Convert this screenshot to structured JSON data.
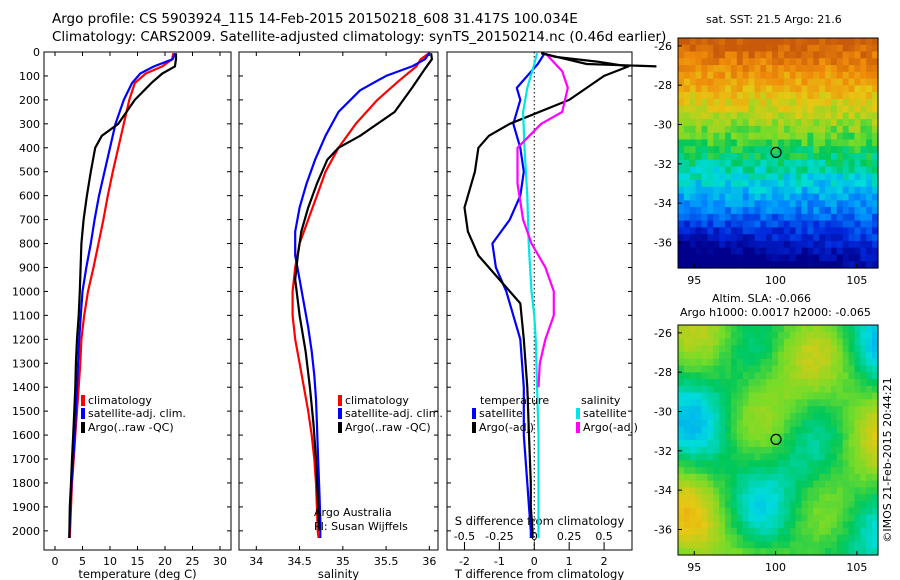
{
  "header": {
    "line1": "Argo profile: CS 5903924_115 14-Feb-2015 20150218_608 31.417S 100.034E",
    "line2": "Climatology: CARS2009. Satellite-adjusted climatology: synTS_20150214.nc (0.46d earlier)"
  },
  "credit": "©IMOS 21-Feb-2015 20:44:21",
  "colors": {
    "clim": "#ff0000",
    "sat": "#0000ff",
    "argo": "#000000",
    "sal_sat": "#00e5e5",
    "sal_argo": "#ff00ff"
  },
  "chart_data": [
    {
      "type": "line",
      "xlabel": "temperature (deg C)",
      "ylabel": "",
      "xlim": [
        -2,
        32
      ],
      "ylim": [
        2080,
        0
      ],
      "xticks": [
        0,
        5,
        10,
        15,
        20,
        25,
        30
      ],
      "yticks": [
        0,
        100,
        200,
        300,
        400,
        500,
        600,
        700,
        800,
        900,
        1000,
        1100,
        1200,
        1300,
        1400,
        1500,
        1600,
        1700,
        1800,
        1900,
        2000
      ],
      "legend": {
        "position": "lower-center",
        "entries": [
          "climatology",
          "satellite-adj. clim.",
          "Argo(..raw -QC)"
        ]
      },
      "series": [
        {
          "name": "climatology",
          "color": "clim",
          "x": [
            21.5,
            21.3,
            19.5,
            16.5,
            14.5,
            13.5,
            12.5,
            11.5,
            10.5,
            9.6,
            8.8,
            7.9,
            7.0,
            6.0,
            5.3,
            4.8,
            4.6,
            4.3,
            4.0,
            3.7,
            3.4,
            3.1,
            2.9,
            2.7
          ],
          "y": [
            5,
            30,
            60,
            90,
            130,
            200,
            300,
            400,
            500,
            600,
            700,
            800,
            900,
            1000,
            1100,
            1200,
            1300,
            1400,
            1500,
            1600,
            1700,
            1800,
            1900,
            2030
          ]
        },
        {
          "name": "satellite-adj. clim.",
          "color": "sat",
          "x": [
            21.8,
            21.4,
            18.0,
            15.5,
            14.0,
            12.5,
            11.0,
            10.0,
            9.0,
            8.0,
            7.2,
            6.5,
            5.7,
            5.0,
            4.7,
            4.4,
            4.2,
            4.0,
            3.8,
            3.6,
            3.3,
            3.0,
            2.8,
            2.6
          ],
          "y": [
            5,
            30,
            60,
            90,
            130,
            200,
            300,
            400,
            500,
            600,
            700,
            800,
            900,
            1000,
            1100,
            1200,
            1300,
            1400,
            1500,
            1600,
            1700,
            1800,
            1900,
            2030
          ]
        },
        {
          "name": "Argo(..raw -QC)",
          "color": "argo",
          "x": [
            22.0,
            22.0,
            21.8,
            19.5,
            17.5,
            14.5,
            11.5,
            8.5,
            7.3,
            6.5,
            5.8,
            5.2,
            4.8,
            4.5,
            4.3,
            4.0,
            3.8,
            3.7,
            3.5,
            3.3,
            3.1,
            2.9,
            2.7,
            2.6
          ],
          "y": [
            5,
            30,
            60,
            90,
            130,
            200,
            300,
            350,
            400,
            500,
            600,
            700,
            800,
            1000,
            1100,
            1200,
            1300,
            1400,
            1500,
            1600,
            1700,
            1800,
            1900,
            2030
          ]
        }
      ]
    },
    {
      "type": "line",
      "xlabel": "salinity",
      "ylabel": "",
      "xlim": [
        33.8,
        36.1
      ],
      "ylim": [
        2080,
        0
      ],
      "xticks": [
        34,
        34.5,
        35,
        35.5,
        36
      ],
      "yticks": [
        0,
        100,
        200,
        300,
        400,
        500,
        600,
        700,
        800,
        900,
        1000,
        1100,
        1200,
        1300,
        1400,
        1500,
        1600,
        1700,
        1800,
        1900,
        2000
      ],
      "legend": {
        "position": "lower-center",
        "entries": [
          "climatology",
          "satellite-adj. clim.",
          "Argo(..raw -QC)"
        ]
      },
      "annotations": [
        "Argo Australia",
        "PI: Susan Wijffels"
      ],
      "series": [
        {
          "name": "climatology",
          "color": "clim",
          "x": [
            36.0,
            35.9,
            35.85,
            35.65,
            35.4,
            35.15,
            34.95,
            34.8,
            34.7,
            34.6,
            34.5,
            34.45,
            34.42,
            34.42,
            34.45,
            34.5,
            34.55,
            34.6,
            34.64,
            34.67,
            34.69,
            34.7,
            34.71,
            34.72
          ],
          "y": [
            5,
            30,
            60,
            120,
            200,
            300,
            400,
            500,
            600,
            700,
            800,
            900,
            1000,
            1100,
            1200,
            1300,
            1400,
            1500,
            1600,
            1700,
            1800,
            1900,
            2000,
            2030
          ]
        },
        {
          "name": "satellite-adj. clim.",
          "color": "sat",
          "x": [
            36.0,
            35.95,
            35.8,
            35.5,
            35.2,
            34.95,
            34.8,
            34.68,
            34.58,
            34.5,
            34.45,
            34.45,
            34.5,
            34.55,
            34.6,
            34.64,
            34.67,
            34.69,
            34.7,
            34.71,
            34.72,
            34.73,
            34.74,
            34.74
          ],
          "y": [
            5,
            30,
            60,
            100,
            160,
            250,
            350,
            450,
            550,
            650,
            750,
            850,
            950,
            1050,
            1150,
            1250,
            1350,
            1450,
            1550,
            1650,
            1750,
            1850,
            1950,
            2030
          ]
        },
        {
          "name": "Argo(..raw -QC)",
          "color": "argo",
          "x": [
            36.02,
            36.03,
            35.95,
            35.8,
            35.6,
            35.2,
            34.95,
            34.82,
            34.7,
            34.6,
            34.52,
            34.48,
            34.45,
            34.5,
            34.57,
            34.62,
            34.66,
            34.69,
            34.71,
            34.72,
            34.73
          ],
          "y": [
            5,
            30,
            70,
            150,
            250,
            350,
            400,
            450,
            550,
            650,
            750,
            850,
            950,
            1100,
            1250,
            1400,
            1550,
            1700,
            1850,
            1950,
            2000
          ]
        }
      ]
    },
    {
      "type": "line",
      "xlabel": "T difference from climatology",
      "x2label": "S difference from climatology",
      "ylabel": "",
      "xlim": [
        -2.5,
        2.8
      ],
      "x2lim": [
        -0.625,
        0.7
      ],
      "ylim": [
        2080,
        0
      ],
      "xticks": [
        -2,
        -1,
        0,
        1,
        2
      ],
      "x2ticks": [
        -0.5,
        -0.25,
        0,
        0.25,
        0.5
      ],
      "legend": {
        "position": "lower-center",
        "temperature_title": "temperature",
        "salinity_title": "salinity",
        "temperature_entries": [
          "satellite",
          "Argo(-adj)"
        ],
        "salinity_entries": [
          "satellite",
          "Argo(-adj)"
        ]
      },
      "series": [
        {
          "name": "satellite",
          "group": "temperature",
          "color": "sat",
          "x": [
            0.3,
            0.1,
            -0.2,
            -0.5,
            -0.4,
            -0.5,
            -0.6,
            -0.4,
            -0.3,
            -0.4,
            -0.7,
            -1.2,
            -1.1,
            -0.8,
            -0.6,
            -0.4,
            -0.3,
            -0.3,
            -0.2,
            -0.15,
            -0.1,
            -0.1
          ],
          "y": [
            5,
            50,
            100,
            150,
            200,
            250,
            300,
            400,
            500,
            600,
            700,
            800,
            900,
            1000,
            1100,
            1200,
            1400,
            1600,
            1800,
            1900,
            2000,
            2030
          ]
        },
        {
          "name": "Argo(-adj)",
          "group": "temperature",
          "color": "argo",
          "x": [
            0.2,
            0.6,
            1.8,
            2.7,
            2.0,
            1.0,
            -0.7,
            -1.3,
            -1.6,
            -1.7,
            -2.0,
            -1.9,
            -1.6,
            -1.0,
            -0.4,
            -0.3,
            -0.2,
            -0.15,
            -0.1,
            -0.1,
            -0.05,
            -0.05
          ],
          "y": [
            5,
            20,
            40,
            60,
            100,
            200,
            300,
            350,
            400,
            500,
            650,
            750,
            850,
            950,
            1050,
            1200,
            1400,
            1600,
            1800,
            1900,
            2000,
            2030
          ]
        },
        {
          "name": "satellite",
          "group": "salinity",
          "color": "sal_sat",
          "x": [
            0.02,
            0.0,
            -0.05,
            -0.08,
            -0.07,
            -0.05,
            -0.04,
            -0.03,
            -0.02,
            0.0,
            0.01,
            0.02,
            0.03,
            0.03,
            0.03,
            0.03
          ],
          "y": [
            5,
            50,
            150,
            250,
            400,
            600,
            800,
            900,
            1000,
            1100,
            1200,
            1400,
            1600,
            1800,
            2000,
            2030
          ]
        },
        {
          "name": "Argo(-adj)",
          "group": "salinity",
          "color": "sal_argo",
          "x": [
            0.08,
            0.12,
            0.2,
            0.24,
            0.2,
            0.05,
            -0.12,
            -0.12,
            -0.08,
            -0.02,
            0.08,
            0.14,
            0.14,
            0.08,
            0.04,
            0.03
          ],
          "y": [
            5,
            30,
            80,
            150,
            250,
            300,
            400,
            550,
            700,
            800,
            900,
            1000,
            1100,
            1200,
            1300,
            1400
          ]
        }
      ]
    },
    {
      "type": "heatmap",
      "title": "sat. SST: 21.5  Argo: 21.6",
      "xlim": [
        94,
        106.3
      ],
      "ylim": [
        -37.3,
        -25.6
      ],
      "xticks": [
        95,
        100,
        105
      ],
      "yticks": [
        -26,
        -28,
        -30,
        -32,
        -34,
        -36
      ],
      "marker": {
        "x": 100.03,
        "y": -31.42
      },
      "grid": false
    },
    {
      "type": "heatmap",
      "title_line1": "Altim. SLA: -0.066",
      "title_line2": "Argo h1000: 0.0017 h2000: -0.065",
      "xlim": [
        94,
        106.3
      ],
      "ylim": [
        -37.3,
        -25.6
      ],
      "xticks": [
        95,
        100,
        105
      ],
      "yticks": [
        -26,
        -28,
        -30,
        -32,
        -34,
        -36
      ],
      "marker": {
        "x": 100.03,
        "y": -31.42
      },
      "grid": false
    }
  ]
}
